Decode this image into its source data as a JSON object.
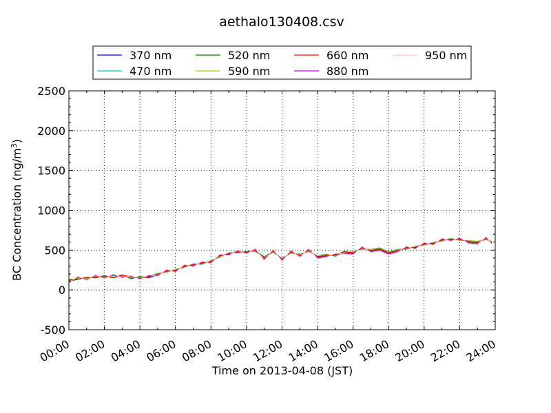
{
  "chart_data": {
    "type": "line",
    "title": "aethalo130408.csv",
    "xlabel": "Time on 2013-04-08 (JST)",
    "ylabel": "BC Concentration (ng/m",
    "ylabel_superscript": "3",
    "ylabel_suffix": ")",
    "xlim": [
      "00:00",
      "24:00"
    ],
    "ylim": [
      -500,
      2500
    ],
    "grid": true,
    "legend_position": "top-center",
    "x_ticks": [
      "00:00",
      "02:00",
      "04:00",
      "06:00",
      "08:00",
      "10:00",
      "12:00",
      "14:00",
      "16:00",
      "18:00",
      "20:00",
      "22:00",
      "24:00"
    ],
    "y_ticks": [
      "-500",
      "0",
      "500",
      "1000",
      "1500",
      "2000",
      "2500"
    ],
    "x_hours": [
      0,
      0.5,
      1,
      1.5,
      2,
      2.5,
      3,
      3.5,
      4,
      4.5,
      5,
      5.5,
      6,
      6.5,
      7,
      7.5,
      8,
      8.5,
      9,
      9.5,
      10,
      10.5,
      11,
      11.5,
      12,
      12.5,
      13,
      13.5,
      14,
      14.5,
      15,
      15.5,
      16,
      16.5,
      17,
      17.5,
      18,
      18.5,
      19,
      19.5,
      20,
      20.5,
      21,
      21.5,
      22,
      22.5,
      23,
      23.5,
      23.8
    ],
    "series": [
      {
        "name": "370 nm",
        "color": "#0000ff",
        "values": [
          130,
          140,
          150,
          160,
          170,
          160,
          180,
          160,
          150,
          160,
          200,
          230,
          250,
          290,
          320,
          330,
          360,
          420,
          460,
          470,
          480,
          490,
          400,
          480,
          390,
          470,
          440,
          490,
          420,
          440,
          430,
          480,
          470,
          520,
          500,
          520,
          470,
          500,
          520,
          540,
          570,
          590,
          620,
          640,
          630,
          610,
          600,
          640,
          600
        ]
      },
      {
        "name": "470 nm",
        "color": "#00c0c0",
        "values": [
          120,
          150,
          140,
          170,
          160,
          180,
          170,
          150,
          160,
          170,
          210,
          220,
          260,
          280,
          330,
          320,
          370,
          410,
          470,
          460,
          490,
          480,
          420,
          470,
          400,
          460,
          450,
          480,
          430,
          450,
          420,
          470,
          480,
          510,
          510,
          530,
          480,
          510,
          510,
          550,
          560,
          600,
          610,
          650,
          620,
          620,
          610,
          630,
          610
        ]
      },
      {
        "name": "520 nm",
        "color": "#008000",
        "values": [
          110,
          130,
          160,
          150,
          180,
          150,
          190,
          140,
          170,
          150,
          190,
          240,
          240,
          300,
          310,
          340,
          350,
          430,
          450,
          480,
          470,
          500,
          410,
          490,
          380,
          480,
          430,
          500,
          410,
          430,
          440,
          470,
          460,
          530,
          490,
          510,
          460,
          490,
          530,
          530,
          580,
          580,
          630,
          630,
          640,
          600,
          590,
          650,
          590
        ]
      },
      {
        "name": "590 nm",
        "color": "#c0c000",
        "values": [
          125,
          145,
          145,
          165,
          165,
          165,
          175,
          155,
          155,
          165,
          205,
          225,
          255,
          285,
          325,
          325,
          365,
          415,
          465,
          465,
          485,
          485,
          405,
          475,
          395,
          465,
          445,
          485,
          425,
          445,
          425,
          475,
          475,
          515,
          505,
          525,
          475,
          505,
          515,
          545,
          565,
          595,
          615,
          645,
          625,
          615,
          605,
          635,
          605
        ]
      },
      {
        "name": "660 nm",
        "color": "#ff0000",
        "values": [
          135,
          135,
          155,
          155,
          175,
          155,
          185,
          165,
          145,
          165,
          195,
          235,
          245,
          295,
          315,
          335,
          355,
          425,
          455,
          475,
          475,
          495,
          395,
          485,
          385,
          475,
          435,
          495,
          415,
          435,
          435,
          485,
          465,
          525,
          495,
          515,
          465,
          495,
          525,
          535,
          575,
          585,
          625,
          635,
          635,
          605,
          595,
          645,
          595
        ]
      },
      {
        "name": "880 nm",
        "color": "#c000c0",
        "values": [
          100,
          160,
          130,
          180,
          150,
          190,
          160,
          170,
          140,
          180,
          180,
          250,
          230,
          310,
          300,
          350,
          340,
          440,
          440,
          490,
          460,
          510,
          380,
          500,
          370,
          490,
          420,
          510,
          400,
          420,
          450,
          460,
          450,
          540,
          480,
          500,
          450,
          480,
          540,
          520,
          590,
          570,
          640,
          620,
          650,
          590,
          580,
          660,
          580
        ]
      },
      {
        "name": "950 nm",
        "color": "#ffc0cb",
        "values": [
          90,
          170,
          120,
          190,
          140,
          200,
          150,
          180,
          130,
          190,
          170,
          260,
          220,
          320,
          290,
          360,
          330,
          450,
          430,
          500,
          450,
          520,
          370,
          510,
          360,
          500,
          410,
          520,
          390,
          410,
          460,
          450,
          440,
          550,
          470,
          490,
          440,
          470,
          550,
          510,
          600,
          560,
          650,
          610,
          660,
          580,
          570,
          670,
          570
        ]
      }
    ]
  }
}
